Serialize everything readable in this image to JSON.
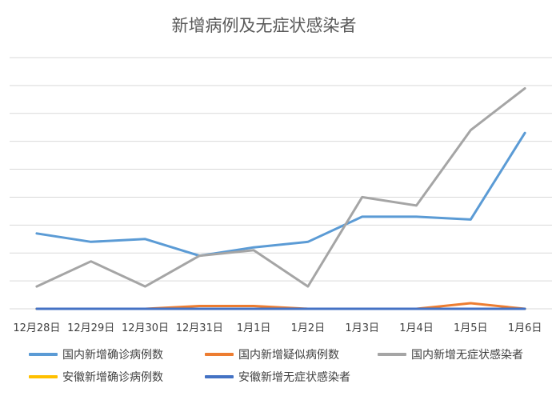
{
  "chart_data": {
    "type": "line",
    "title": "新增病例及无症状感染者",
    "categories": [
      "12月28日",
      "12月29日",
      "12月30日",
      "12月31日",
      "1月1日",
      "1月2日",
      "1月3日",
      "1月4日",
      "1月5日",
      "1月6日"
    ],
    "ylim": [
      0,
      90
    ],
    "grid": true,
    "legend_position": "bottom",
    "series": [
      {
        "name": "国内新增确诊病例数",
        "color": "#5B9BD5",
        "values": [
          27,
          24,
          25,
          19,
          22,
          24,
          33,
          33,
          32,
          63
        ]
      },
      {
        "name": "国内新增疑似病例数",
        "color": "#ED7D31",
        "values": [
          0,
          0,
          0,
          1,
          1,
          0,
          0,
          0,
          2,
          0
        ]
      },
      {
        "name": "国内新增无症状感染者",
        "color": "#A5A5A5",
        "values": [
          8,
          17,
          8,
          19,
          21,
          8,
          40,
          37,
          64,
          79
        ]
      },
      {
        "name": "安徽新增确诊病例数",
        "color": "#FFC000",
        "values": [
          0,
          0,
          0,
          0,
          0,
          0,
          0,
          0,
          0,
          0
        ]
      },
      {
        "name": "安徽新增无症状感染者",
        "color": "#4472C4",
        "values": [
          0,
          0,
          0,
          0,
          0,
          0,
          0,
          0,
          0,
          0
        ]
      }
    ]
  }
}
